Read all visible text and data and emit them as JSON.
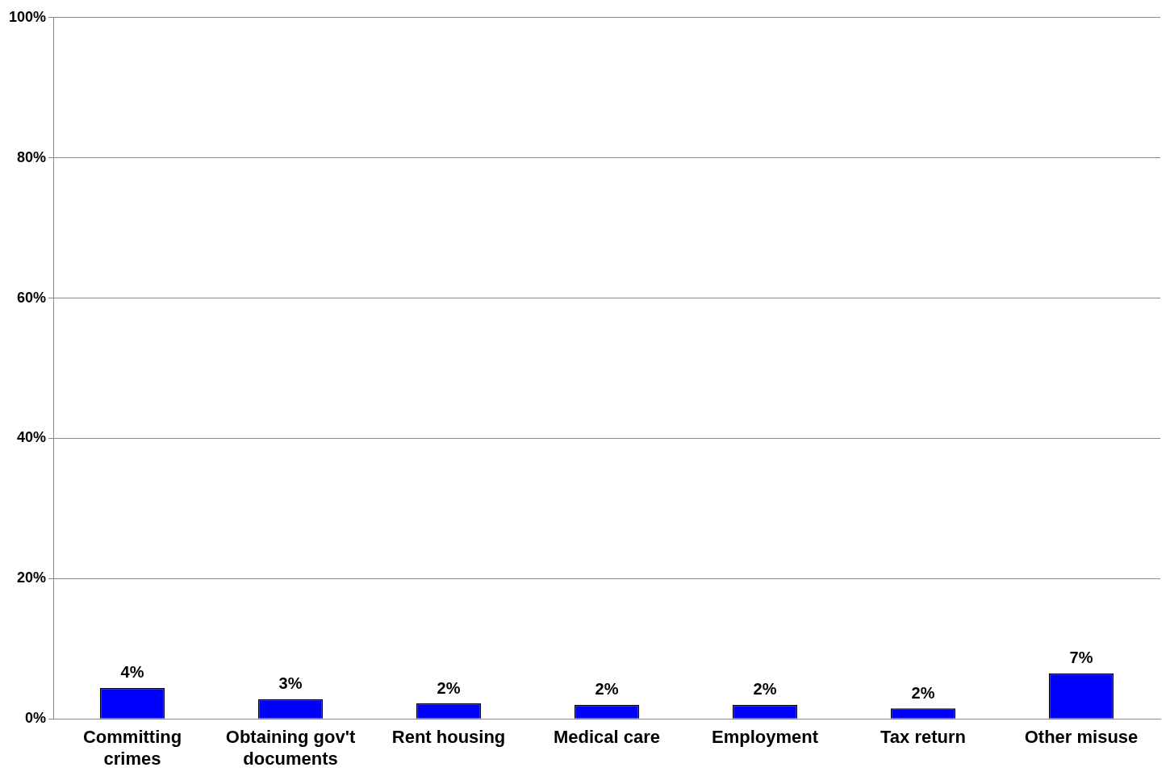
{
  "chart_data": {
    "type": "bar",
    "categories": [
      "Committing crimes",
      "Obtaining gov't documents",
      "Rent housing",
      "Medical care",
      "Employment",
      "Tax return",
      "Other misuse"
    ],
    "values": [
      4.4,
      2.8,
      2.2,
      2.0,
      2.0,
      1.5,
      6.5
    ],
    "value_labels": [
      "4%",
      "3%",
      "2%",
      "2%",
      "2%",
      "2%",
      "7%"
    ],
    "color": "#0000ff",
    "ylim": [
      0,
      100
    ],
    "yticks": [
      {
        "value": 0,
        "label": "0%"
      },
      {
        "value": 20,
        "label": "20%"
      },
      {
        "value": 40,
        "label": "40%"
      },
      {
        "value": 60,
        "label": "60%"
      },
      {
        "value": 80,
        "label": "80%"
      },
      {
        "value": 100,
        "label": "100%"
      }
    ],
    "grid": "y",
    "legend": false
  }
}
